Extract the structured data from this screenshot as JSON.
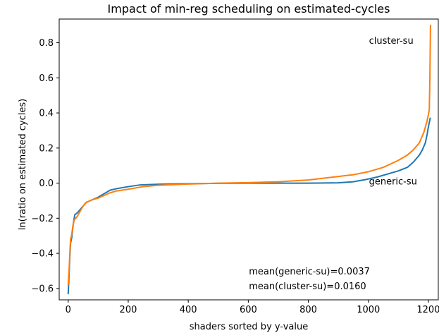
{
  "chart_data": {
    "type": "line",
    "title": "Impact of min-reg scheduling on estimated-cycles",
    "xlabel": "shaders sorted by y-value",
    "ylabel": "ln(ratio on estimated cycles)",
    "xlim": [
      -30,
      1233
    ],
    "ylim": [
      -0.665,
      0.935
    ],
    "x_ticks": [
      0,
      200,
      400,
      600,
      800,
      1000,
      1200
    ],
    "y_ticks": [
      -0.6,
      -0.4,
      -0.2,
      0.0,
      0.2,
      0.4,
      0.6,
      0.8
    ],
    "x_tick_labels": [
      "0",
      "200",
      "400",
      "600",
      "800",
      "1000",
      "1200"
    ],
    "y_tick_labels": [
      "−0.6",
      "−0.4",
      "−0.2",
      "0.0",
      "0.2",
      "0.4",
      "0.6",
      "0.8"
    ],
    "grid": false,
    "series": [
      {
        "name": "generic-su",
        "color": "#1f77b4",
        "points": [
          [
            0,
            -0.63
          ],
          [
            2,
            -0.56
          ],
          [
            4,
            -0.48
          ],
          [
            6,
            -0.4
          ],
          [
            8,
            -0.34
          ],
          [
            12,
            -0.31
          ],
          [
            15,
            -0.26
          ],
          [
            18,
            -0.22
          ],
          [
            22,
            -0.18
          ],
          [
            30,
            -0.17
          ],
          [
            40,
            -0.15
          ],
          [
            50,
            -0.13
          ],
          [
            60,
            -0.11
          ],
          [
            80,
            -0.095
          ],
          [
            100,
            -0.08
          ],
          [
            120,
            -0.06
          ],
          [
            140,
            -0.04
          ],
          [
            160,
            -0.032
          ],
          [
            200,
            -0.02
          ],
          [
            240,
            -0.01
          ],
          [
            300,
            -0.006
          ],
          [
            400,
            -0.003
          ],
          [
            500,
            -0.001
          ],
          [
            600,
            0.0
          ],
          [
            700,
            0.0
          ],
          [
            800,
            0.0
          ],
          [
            900,
            0.002
          ],
          [
            950,
            0.008
          ],
          [
            990,
            0.02
          ],
          [
            1030,
            0.035
          ],
          [
            1070,
            0.055
          ],
          [
            1100,
            0.07
          ],
          [
            1130,
            0.09
          ],
          [
            1150,
            0.12
          ],
          [
            1170,
            0.16
          ],
          [
            1180,
            0.19
          ],
          [
            1190,
            0.23
          ],
          [
            1196,
            0.28
          ],
          [
            1200,
            0.32
          ],
          [
            1206,
            0.37
          ]
        ]
      },
      {
        "name": "cluster-su",
        "color": "#ff7f0e",
        "points": [
          [
            0,
            -0.58
          ],
          [
            2,
            -0.52
          ],
          [
            4,
            -0.46
          ],
          [
            6,
            -0.38
          ],
          [
            8,
            -0.32
          ],
          [
            12,
            -0.29
          ],
          [
            15,
            -0.25
          ],
          [
            20,
            -0.21
          ],
          [
            30,
            -0.19
          ],
          [
            40,
            -0.16
          ],
          [
            50,
            -0.13
          ],
          [
            60,
            -0.11
          ],
          [
            80,
            -0.095
          ],
          [
            100,
            -0.085
          ],
          [
            120,
            -0.07
          ],
          [
            140,
            -0.055
          ],
          [
            160,
            -0.045
          ],
          [
            200,
            -0.035
          ],
          [
            250,
            -0.02
          ],
          [
            300,
            -0.012
          ],
          [
            400,
            -0.005
          ],
          [
            500,
            0.0
          ],
          [
            600,
            0.003
          ],
          [
            700,
            0.008
          ],
          [
            800,
            0.018
          ],
          [
            850,
            0.028
          ],
          [
            900,
            0.038
          ],
          [
            950,
            0.048
          ],
          [
            1000,
            0.065
          ],
          [
            1050,
            0.09
          ],
          [
            1100,
            0.13
          ],
          [
            1130,
            0.16
          ],
          [
            1150,
            0.19
          ],
          [
            1170,
            0.23
          ],
          [
            1185,
            0.29
          ],
          [
            1195,
            0.35
          ],
          [
            1200,
            0.39
          ],
          [
            1203,
            0.42
          ],
          [
            1205,
            0.6
          ],
          [
            1206,
            0.75
          ],
          [
            1207,
            0.9
          ]
        ]
      }
    ],
    "annotations": [
      {
        "text": "cluster-su",
        "x": 1002,
        "y": 0.795
      },
      {
        "text": "generic-su",
        "x": 1002,
        "y": -0.008
      },
      {
        "text": "mean(generic-su)=0.0037",
        "x": 602,
        "y": -0.52
      },
      {
        "text": "mean(cluster-su)=0.0160",
        "x": 602,
        "y": -0.605
      }
    ]
  }
}
